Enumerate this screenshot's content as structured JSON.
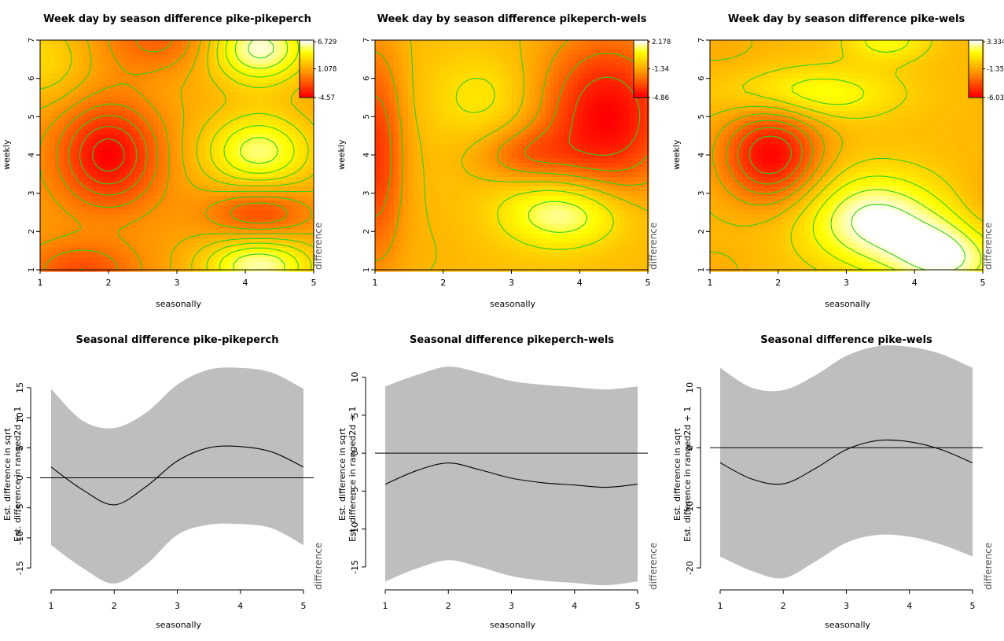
{
  "chart_data": [
    {
      "type": "heatmap",
      "title": "Week day by season difference pike-pikeperch",
      "xlabel": "seasonally",
      "ylabel": "weekly",
      "xlim": [
        1,
        5
      ],
      "ylim": [
        1,
        7
      ],
      "x_ticks": [
        "1",
        "2",
        "3",
        "4",
        "5"
      ],
      "y_ticks": [
        "1",
        "2",
        "3",
        "4",
        "5",
        "6",
        "7"
      ],
      "colorbar": {
        "labels": [
          "6.729",
          "1.078",
          "-4.57"
        ],
        "range": [
          -4.57,
          6.729
        ]
      },
      "side_label": "difference",
      "colors": {
        "low": "#ff0000",
        "mid": "#ff9900",
        "high": "#ffff00",
        "top": "#ffffff",
        "contour": "#2fcf1f"
      },
      "features": [
        {
          "x": 2.0,
          "y": 4.0,
          "value": -4.57,
          "sx": 0.5,
          "sy": 0.9
        },
        {
          "x": 4.2,
          "y": 4.1,
          "value": 5.5,
          "sx": 0.6,
          "sy": 0.75
        },
        {
          "x": 4.2,
          "y": 6.8,
          "value": 6.5,
          "sx": 0.55,
          "sy": 0.7
        },
        {
          "x": 4.2,
          "y": 1.1,
          "value": 6.0,
          "sx": 0.6,
          "sy": 0.55
        },
        {
          "x": 4.2,
          "y": 2.5,
          "value": -2.5,
          "sx": 0.5,
          "sy": 0.45
        },
        {
          "x": 1.0,
          "y": 6.5,
          "value": 3.0,
          "sx": 0.5,
          "sy": 0.8
        },
        {
          "x": 2.8,
          "y": 7.0,
          "value": -1.5,
          "sx": 0.6,
          "sy": 0.6
        },
        {
          "x": 1.6,
          "y": 1.0,
          "value": -2.0,
          "sx": 0.55,
          "sy": 0.5
        },
        {
          "x": 3.0,
          "y": 5.8,
          "value": 1.0,
          "sx": 0.4,
          "sy": 0.6
        }
      ]
    },
    {
      "type": "heatmap",
      "title": "Week day by season difference pikeperch-wels",
      "xlabel": "seasonally",
      "ylabel": "weekly",
      "xlim": [
        1,
        5
      ],
      "ylim": [
        1,
        7
      ],
      "x_ticks": [
        "1",
        "2",
        "3",
        "4",
        "5"
      ],
      "y_ticks": [
        "1",
        "2",
        "3",
        "4",
        "5",
        "6",
        "7"
      ],
      "colorbar": {
        "labels": [
          "2.178",
          "-1.34",
          "-4.86"
        ],
        "range": [
          -4.86,
          2.178
        ]
      },
      "side_label": "difference",
      "colors": {
        "low": "#ff0000",
        "mid": "#ff9900",
        "high": "#ffff00",
        "top": "#ffffff",
        "contour": "#2fcf1f"
      },
      "features": [
        {
          "x": 3.8,
          "y": 2.5,
          "value": 2.178,
          "sx": 0.65,
          "sy": 0.65
        },
        {
          "x": 2.6,
          "y": 5.5,
          "value": 0.3,
          "sx": 0.55,
          "sy": 0.8
        },
        {
          "x": 4.4,
          "y": 5.0,
          "value": -4.86,
          "sx": 0.7,
          "sy": 1.5
        },
        {
          "x": 1.0,
          "y": 4.0,
          "value": -3.8,
          "sx": 0.3,
          "sy": 2.0
        },
        {
          "x": 3.2,
          "y": 4.0,
          "value": -2.5,
          "sx": 0.5,
          "sy": 0.5
        },
        {
          "x": 1.8,
          "y": 1.5,
          "value": -1.0,
          "sx": 0.5,
          "sy": 1.0
        }
      ]
    },
    {
      "type": "heatmap",
      "title": "Week day by season difference pike-wels",
      "xlabel": "seasonally",
      "ylabel": "weekly",
      "xlim": [
        1,
        5
      ],
      "ylim": [
        1,
        7
      ],
      "x_ticks": [
        "1",
        "2",
        "3",
        "4",
        "5"
      ],
      "y_ticks": [
        "1",
        "2",
        "3",
        "4",
        "5",
        "6",
        "7"
      ],
      "colorbar": {
        "labels": [
          "3.334",
          "-1.35",
          "-6.03"
        ],
        "range": [
          -6.03,
          3.334
        ]
      },
      "side_label": "difference",
      "colors": {
        "low": "#ff0000",
        "mid": "#ff9900",
        "high": "#ffff00",
        "top": "#ffffff",
        "contour": "#2fcf1f"
      },
      "features": [
        {
          "x": 1.9,
          "y": 4.0,
          "value": -6.03,
          "sx": 0.5,
          "sy": 0.85
        },
        {
          "x": 3.4,
          "y": 2.3,
          "value": 3.334,
          "sx": 0.75,
          "sy": 0.9
        },
        {
          "x": 4.5,
          "y": 1.3,
          "value": 3.0,
          "sx": 0.6,
          "sy": 0.7
        },
        {
          "x": 2.5,
          "y": 5.6,
          "value": 1.8,
          "sx": 0.9,
          "sy": 0.5
        },
        {
          "x": 4.3,
          "y": 5.0,
          "value": -0.8,
          "sx": 0.45,
          "sy": 0.5
        },
        {
          "x": 1.2,
          "y": 6.7,
          "value": -1.2,
          "sx": 0.45,
          "sy": 0.5
        },
        {
          "x": 5.0,
          "y": 2.5,
          "value": -1.5,
          "sx": 0.3,
          "sy": 0.8
        },
        {
          "x": 1.0,
          "y": 1.0,
          "value": -1.2,
          "sx": 0.4,
          "sy": 0.4
        },
        {
          "x": 3.6,
          "y": 7.0,
          "value": 1.5,
          "sx": 0.45,
          "sy": 0.4
        }
      ]
    },
    {
      "type": "line",
      "title": "Seasonal difference pike-pikeperch",
      "xlabel": "seasonally",
      "ylabel": [
        "Est. difference in sqrt",
        "Est. difference in ranged2d + 1"
      ],
      "xlim": [
        1,
        5
      ],
      "ylim": [
        -18,
        18
      ],
      "x_ticks": [
        "1",
        "2",
        "3",
        "4",
        "5"
      ],
      "y_ticks": [
        "-15",
        "-10",
        "-5",
        "0",
        "5",
        "10",
        "15"
      ],
      "side_label": "difference",
      "band_color": "#bebebe",
      "x": [
        1,
        1.5,
        2,
        2.5,
        3,
        3.5,
        4,
        4.5,
        5
      ],
      "y": [
        1.8,
        -2.0,
        -4.5,
        -1.5,
        2.8,
        5.0,
        5.2,
        4.3,
        1.8
      ],
      "upper": [
        14.8,
        9.5,
        8.3,
        10.8,
        15.5,
        18.0,
        18.3,
        17.5,
        14.8
      ],
      "lower": [
        -11.2,
        -15.0,
        -17.6,
        -14.5,
        -9.5,
        -7.8,
        -7.7,
        -8.4,
        -11.2
      ],
      "hline": 0
    },
    {
      "type": "line",
      "title": "Seasonal difference pikeperch-wels",
      "xlabel": "seasonally",
      "ylabel": [
        "Est. difference in sqrt",
        "Est. difference in ranged2d + 1"
      ],
      "xlim": [
        1,
        5
      ],
      "ylim": [
        -17.5,
        11
      ],
      "x_ticks": [
        "1",
        "2",
        "3",
        "4",
        "5"
      ],
      "y_ticks": [
        "-15",
        "-10",
        "-5",
        "0",
        "5",
        "10"
      ],
      "side_label": "difference",
      "band_color": "#bebebe",
      "x": [
        1,
        1.5,
        2,
        2.5,
        3,
        3.5,
        4,
        4.5,
        5
      ],
      "y": [
        -4.1,
        -2.3,
        -1.3,
        -2.2,
        -3.3,
        -3.9,
        -4.2,
        -4.5,
        -4.1
      ],
      "upper": [
        8.8,
        10.3,
        11.4,
        10.6,
        9.5,
        9.0,
        8.7,
        8.4,
        8.8
      ],
      "lower": [
        -16.9,
        -15.2,
        -14.1,
        -15.0,
        -16.2,
        -16.8,
        -17.1,
        -17.4,
        -16.9
      ],
      "hline": 0
    },
    {
      "type": "line",
      "title": "Seasonal difference pike-wels",
      "xlabel": "seasonally",
      "ylabel": [
        "Est. difference in sqrt",
        "Est. difference in ranged2d + 1"
      ],
      "xlim": [
        1,
        5
      ],
      "ylim": [
        -23,
        13
      ],
      "x_ticks": [
        "1",
        "2",
        "3",
        "4",
        "5"
      ],
      "y_ticks": [
        "-20",
        "-10",
        "0",
        "10"
      ],
      "side_label": "difference",
      "band_color": "#bebebe",
      "x": [
        1,
        1.5,
        2,
        2.5,
        3,
        3.5,
        4,
        4.5,
        5
      ],
      "y": [
        -2.5,
        -5.2,
        -6.0,
        -3.5,
        -0.3,
        1.2,
        1.0,
        -0.3,
        -2.5
      ],
      "upper": [
        13.3,
        10.0,
        9.6,
        12.0,
        15.3,
        16.9,
        16.8,
        15.6,
        13.3
      ],
      "lower": [
        -18.1,
        -20.5,
        -21.7,
        -19.0,
        -15.8,
        -14.5,
        -14.8,
        -16.1,
        -18.1
      ],
      "hline": 0
    }
  ]
}
